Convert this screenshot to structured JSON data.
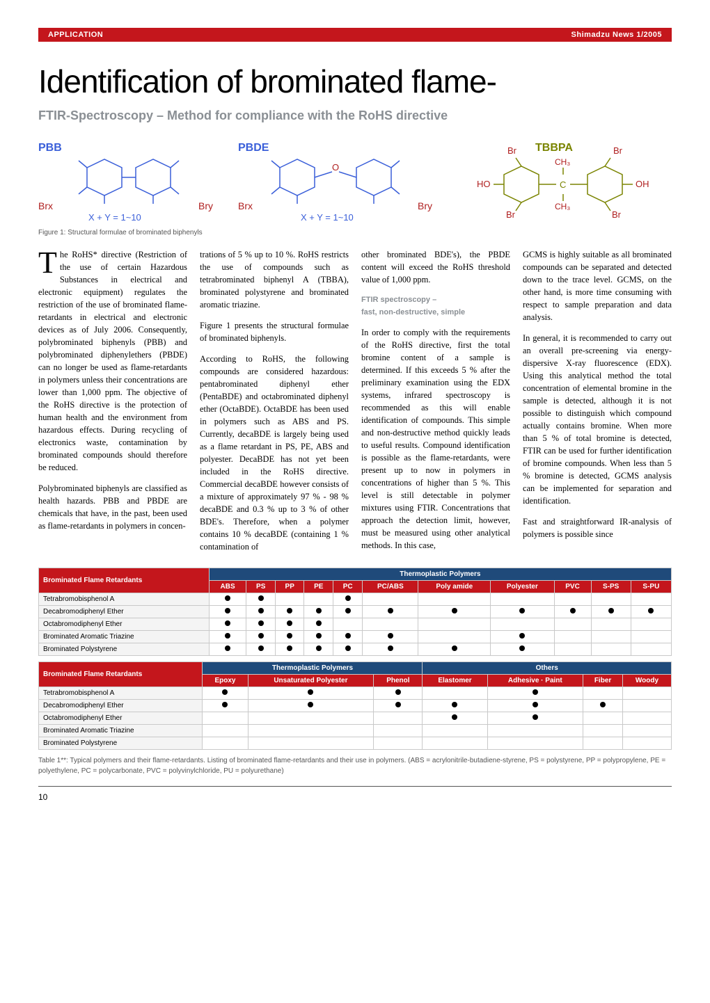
{
  "header": {
    "section": "APPLICATION",
    "issue": "Shimadzu News 1/2005"
  },
  "title": "Identification of brominated flame-",
  "subtitle": "FTIR-Spectroscopy – Method for compliance with the RoHS directive",
  "figure": {
    "labels": {
      "pbb": "PBB",
      "pbde": "PBDE",
      "tbbpa": "TBBPA"
    },
    "eq1": "X + Y = 1~10",
    "eq2": "X + Y = 1~10",
    "atoms": {
      "brx": "Brx",
      "bry": "Bry",
      "br": "Br",
      "ho": "HO",
      "oh": "OH",
      "ch3": "CH₃"
    },
    "caption": "Figure 1: Structural formulae of brominated biphenyls"
  },
  "body": {
    "p1": "he RoHS* directive (Restriction of the use of certain Hazardous Substances in electrical and electronic equipment) regulates the restriction of the use of brominated flame-retardants in electrical and electronic devices as of July 2006. Consequently, polybrominated biphenyls (PBB) and polybrominated diphenylethers (PBDE) can no longer be used as flame-retardants in polymers unless their concentrations are lower than 1,000 ppm. The objective of the RoHS directive is the protection of human health and the environment from hazardous effects. During recycling of electronics waste, contamination by brominated compounds should therefore be reduced.",
    "p2": "Polybrominated biphenyls are classified as health hazards. PBB and PBDE are chemicals that have, in the past, been used as flame-retardants in polymers in concen-",
    "p3": "trations of 5 % up to 10 %. RoHS restricts the use of compounds such as tetrabrominated biphenyl A (TBBA), brominated polystyrene and brominated aromatic triazine.",
    "p4": "Figure 1 presents the structural formulae of brominated biphenyls.",
    "p5": "According to RoHS, the following compounds are considered hazardous: pentabrominated diphenyl ether (PentaBDE) and octabrominated diphenyl ether (OctaBDE). OctaBDE has been used in polymers such as ABS and PS. Currently, decaBDE is largely being used as a flame retardant in PS, PE, ABS and polyester. DecaBDE has not yet been included in the RoHS directive. Commercial decaBDE however consists of a mixture of approximately 97 % - 98 % decaBDE and 0.3 % up to 3 % of other BDE's. Therefore, when a polymer contains 10 % decaBDE (containing 1 % contamination of",
    "p6": "other brominated BDE's), the PBDE content will exceed the RoHS threshold value of 1,000 ppm.",
    "h1a": "FTIR spectroscopy –",
    "h1b": "fast, non-destructive, simple",
    "p7": "In order to comply with the requirements of the RoHS directive, first the total bromine content of a sample is determined. If this exceeds 5 % after the preliminary examination using the EDX systems, infrared spectroscopy is recommended as this will enable identification of compounds. This simple and non-destructive method quickly leads to useful results. Compound identification is possible as the flame-retardants, were present up to now in polymers in concentrations of higher than 5 %. This level is still detectable in polymer mixtures using FTIR. Concentrations that approach the detection limit, however, must be measured using other analytical methods. In this case,",
    "p8": "GCMS is highly suitable as all brominated compounds can be separated and detected down to the trace level. GCMS, on the other hand, is more time consuming with respect to sample preparation and data analysis.",
    "p9": "In general, it is recommended to carry out an overall pre-screening via energy-dispersive X-ray fluorescence (EDX). Using this analytical method the total concentration of elemental bromine in the sample is detected, although it is not possible to distinguish which compound actually contains bromine. When more than 5 % of total bromine is detected, FTIR can be used for further identification of bromine compounds. When less than 5 % bromine is detected, GCMS analysis can be implemented for separation and identification.",
    "p10": "Fast and straightforward IR-analysis of polymers is possible since"
  },
  "table1": {
    "rowhead_label": "Brominated Flame Retardants",
    "group": "Thermoplastic Polymers",
    "columns": [
      "ABS",
      "PS",
      "PP",
      "PE",
      "PC",
      "PC/ABS",
      "Poly amide",
      "Polyester",
      "PVC",
      "S-PS",
      "S-PU"
    ],
    "rows": [
      {
        "name": "Tetrabromobisphenol A",
        "cells": [
          1,
          1,
          0,
          0,
          1,
          0,
          0,
          0,
          0,
          0,
          0
        ]
      },
      {
        "name": "Decabromodiphenyl Ether",
        "cells": [
          1,
          1,
          1,
          1,
          1,
          1,
          1,
          1,
          1,
          1,
          1
        ]
      },
      {
        "name": "Octabromodiphenyl Ether",
        "cells": [
          1,
          1,
          1,
          1,
          0,
          0,
          0,
          0,
          0,
          0,
          0
        ]
      },
      {
        "name": "Brominated Aromatic Triazine",
        "cells": [
          1,
          1,
          1,
          1,
          1,
          1,
          0,
          1,
          0,
          0,
          0
        ]
      },
      {
        "name": "Brominated Polystyrene",
        "cells": [
          1,
          1,
          1,
          1,
          1,
          1,
          1,
          1,
          0,
          0,
          0
        ]
      }
    ]
  },
  "table2": {
    "rowhead_label": "Brominated Flame Retardants",
    "group1": "Thermoplastic Polymers",
    "group2": "Others",
    "columns1": [
      "Epoxy",
      "Unsaturated Polyester",
      "Phenol"
    ],
    "columns2": [
      "Elastomer",
      "Adhesive · Paint",
      "Fiber",
      "Woody"
    ],
    "rows": [
      {
        "name": "Tetrabromobisphenol A",
        "cells": [
          1,
          1,
          1,
          0,
          1,
          0,
          0
        ]
      },
      {
        "name": "Decabromodiphenyl Ether",
        "cells": [
          1,
          1,
          1,
          1,
          1,
          1,
          0
        ]
      },
      {
        "name": "Octabromodiphenyl Ether",
        "cells": [
          0,
          0,
          0,
          1,
          1,
          0,
          0
        ]
      },
      {
        "name": "Brominated Aromatic Triazine",
        "cells": [
          0,
          0,
          0,
          0,
          0,
          0,
          0
        ]
      },
      {
        "name": "Brominated Polystyrene",
        "cells": [
          0,
          0,
          0,
          0,
          0,
          0,
          0
        ]
      }
    ]
  },
  "table_caption": "Table 1**: Typical polymers and their flame-retardants. Listing of brominated flame-retardants and their use in polymers. (ABS = acrylonitrile-butadiene-styrene, PS = polystyrene, PP = polypropylene, PE = polyethylene, PC = polycarbonate, PVC = polyvinylchloride, PU = polyurethane)",
  "page_number": "10",
  "colors": {
    "red": "#c4161c",
    "blue_header": "#1f4a7a",
    "grey_heading": "#8a8f94",
    "bond_blue": "#3a5fd9",
    "label_olive": "#7a8400",
    "atom_red": "#b02020"
  }
}
